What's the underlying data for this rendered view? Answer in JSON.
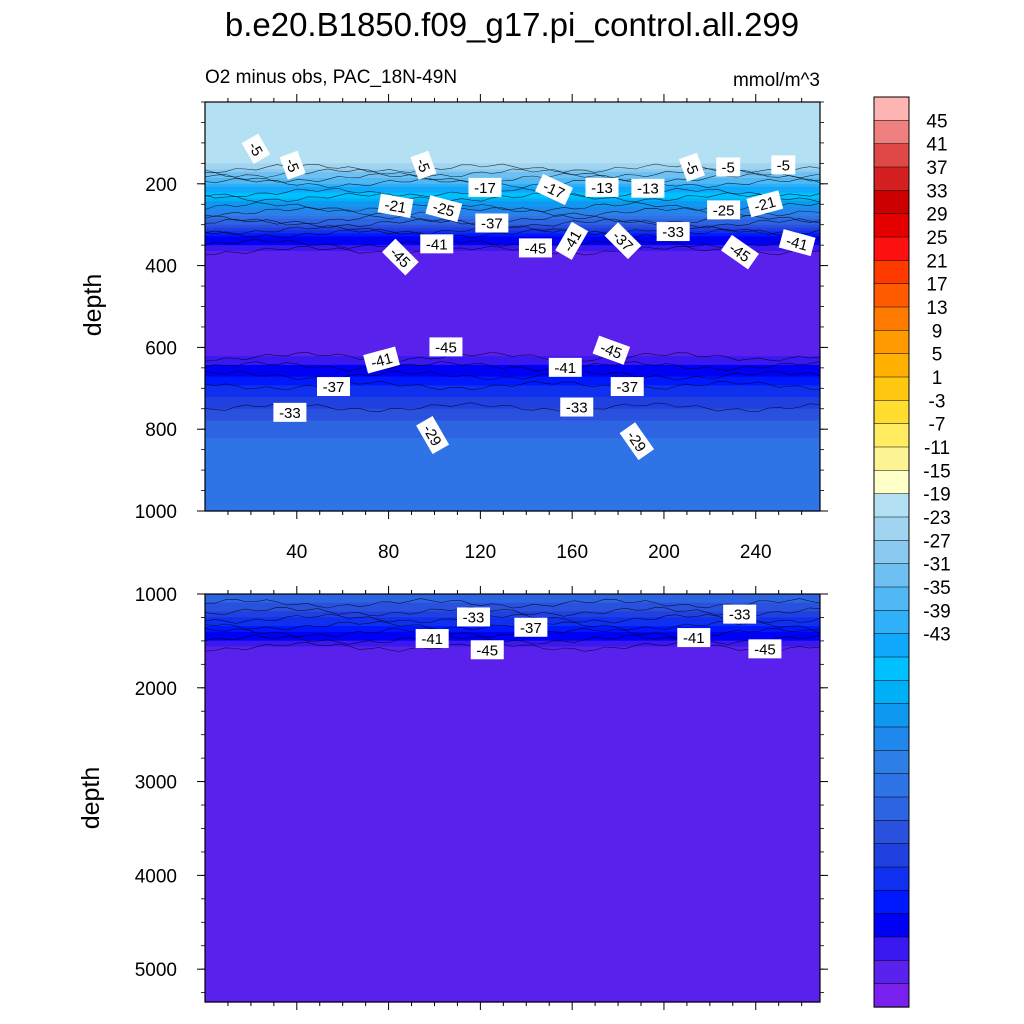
{
  "chart_data": {
    "type": "heatmap",
    "title": "b.e20.B1850.f09_g17.pi_control.all.299",
    "panels": [
      {
        "subtitle_left": "O2 minus obs, PAC_18N-49N",
        "subtitle_right": "mmol/m^3",
        "ylabel": "depth",
        "ylim": [
          1000,
          0
        ],
        "xlim": [
          0,
          268
        ],
        "x_ticks": [
          40,
          80,
          120,
          160,
          200,
          240
        ],
        "y_ticks": [
          200,
          400,
          600,
          800,
          1000
        ],
        "profile": [
          {
            "depth": 0,
            "value": -4
          },
          {
            "depth": 150,
            "value": -5
          },
          {
            "depth": 210,
            "value": -15
          },
          {
            "depth": 280,
            "value": -27
          },
          {
            "depth": 330,
            "value": -39
          },
          {
            "depth": 380,
            "value": -45
          },
          {
            "depth": 600,
            "value": -45
          },
          {
            "depth": 680,
            "value": -38
          },
          {
            "depth": 760,
            "value": -32
          },
          {
            "depth": 820,
            "value": -29
          },
          {
            "depth": 1000,
            "value": -29
          }
        ],
        "contour_labels": [
          {
            "x": 22,
            "depth": 115,
            "text": "-5",
            "rot": 60
          },
          {
            "x": 38,
            "depth": 155,
            "text": "-5",
            "rot": 70
          },
          {
            "x": 95,
            "depth": 155,
            "text": "-5",
            "rot": 70
          },
          {
            "x": 212,
            "depth": 160,
            "text": "-5",
            "rot": 70
          },
          {
            "x": 228,
            "depth": 160,
            "text": "-5",
            "rot": 0
          },
          {
            "x": 252,
            "depth": 155,
            "text": "-5",
            "rot": 0
          },
          {
            "x": 122,
            "depth": 210,
            "text": "-17",
            "rot": 0
          },
          {
            "x": 152,
            "depth": 215,
            "text": "-17",
            "rot": 25
          },
          {
            "x": 173,
            "depth": 210,
            "text": "-13",
            "rot": 0
          },
          {
            "x": 193,
            "depth": 212,
            "text": "-13",
            "rot": 0
          },
          {
            "x": 83,
            "depth": 255,
            "text": "-21",
            "rot": 10
          },
          {
            "x": 104,
            "depth": 262,
            "text": "-25",
            "rot": 15
          },
          {
            "x": 226,
            "depth": 265,
            "text": "-25",
            "rot": 0
          },
          {
            "x": 244,
            "depth": 250,
            "text": "-21",
            "rot": -15
          },
          {
            "x": 125,
            "depth": 297,
            "text": "-37",
            "rot": 0
          },
          {
            "x": 204,
            "depth": 318,
            "text": "-33",
            "rot": 0
          },
          {
            "x": 101,
            "depth": 348,
            "text": "-41",
            "rot": 0
          },
          {
            "x": 160,
            "depth": 340,
            "text": "-41",
            "rot": -60
          },
          {
            "x": 182,
            "depth": 340,
            "text": "-37",
            "rot": 45
          },
          {
            "x": 258,
            "depth": 345,
            "text": "-41",
            "rot": 15
          },
          {
            "x": 85,
            "depth": 380,
            "text": "-45",
            "rot": 45
          },
          {
            "x": 144,
            "depth": 358,
            "text": "-45",
            "rot": 0
          },
          {
            "x": 233,
            "depth": 368,
            "text": "-45",
            "rot": 35
          },
          {
            "x": 105,
            "depth": 600,
            "text": "-45",
            "rot": 0
          },
          {
            "x": 177,
            "depth": 608,
            "text": "-45",
            "rot": 20
          },
          {
            "x": 77,
            "depth": 632,
            "text": "-41",
            "rot": -15
          },
          {
            "x": 157,
            "depth": 650,
            "text": "-41",
            "rot": 0
          },
          {
            "x": 56,
            "depth": 697,
            "text": "-37",
            "rot": 0
          },
          {
            "x": 184,
            "depth": 697,
            "text": "-37",
            "rot": 0
          },
          {
            "x": 37,
            "depth": 760,
            "text": "-33",
            "rot": 0
          },
          {
            "x": 162,
            "depth": 747,
            "text": "-33",
            "rot": 0
          },
          {
            "x": 99,
            "depth": 815,
            "text": "-29",
            "rot": 60
          },
          {
            "x": 188,
            "depth": 830,
            "text": "-29",
            "rot": 55
          }
        ]
      },
      {
        "ylabel": "depth",
        "ylim": [
          5350,
          1000
        ],
        "xlim": [
          0,
          268
        ],
        "y_ticks": [
          1000,
          2000,
          3000,
          4000,
          5000
        ],
        "profile": [
          {
            "depth": 1000,
            "value": -29
          },
          {
            "depth": 1150,
            "value": -32
          },
          {
            "depth": 1300,
            "value": -36
          },
          {
            "depth": 1450,
            "value": -40
          },
          {
            "depth": 1600,
            "value": -44
          },
          {
            "depth": 1700,
            "value": -45
          },
          {
            "depth": 5350,
            "value": -45
          }
        ],
        "contour_labels": [
          {
            "x": 117,
            "depth": 1250,
            "text": "-33",
            "rot": 0
          },
          {
            "x": 233,
            "depth": 1220,
            "text": "-33",
            "rot": 0
          },
          {
            "x": 142,
            "depth": 1360,
            "text": "-37",
            "rot": 0
          },
          {
            "x": 99,
            "depth": 1480,
            "text": "-41",
            "rot": 0
          },
          {
            "x": 213,
            "depth": 1470,
            "text": "-41",
            "rot": 0
          },
          {
            "x": 123,
            "depth": 1600,
            "text": "-45",
            "rot": 0
          },
          {
            "x": 244,
            "depth": 1590,
            "text": "-45",
            "rot": 0
          }
        ]
      }
    ],
    "colorbar": {
      "labels": [
        "45",
        "41",
        "37",
        "33",
        "29",
        "25",
        "21",
        "17",
        "13",
        "9",
        "5",
        "1",
        "-3",
        "-7",
        "-11",
        "-15",
        "-19",
        "-23",
        "-27",
        "-31",
        "-35",
        "-39",
        "-43"
      ],
      "colors": [
        "#FFB4B4",
        "#F08080",
        "#E04848",
        "#D42020",
        "#CC0000",
        "#E40000",
        "#FF1010",
        "#FF3A00",
        "#FF5A00",
        "#FF7A00",
        "#FF9A00",
        "#FFB000",
        "#FFC810",
        "#FFDC30",
        "#FFEC60",
        "#FFF494",
        "#FFFFC8",
        "#B4E0F4",
        "#A0D4F0",
        "#8ACAF0",
        "#6EC0F2",
        "#50B8F4",
        "#30B0F8",
        "#10A8FA",
        "#00C0FF",
        "#00B0F6",
        "#1098F0",
        "#2088EC",
        "#2E7EE8",
        "#2E74E6",
        "#2C64E2",
        "#2A50DE",
        "#2040E0",
        "#1030F0",
        "#0018FF",
        "#0000F4",
        "#3A18F0",
        "#5A20EC",
        "#7A20EE"
      ]
    }
  }
}
